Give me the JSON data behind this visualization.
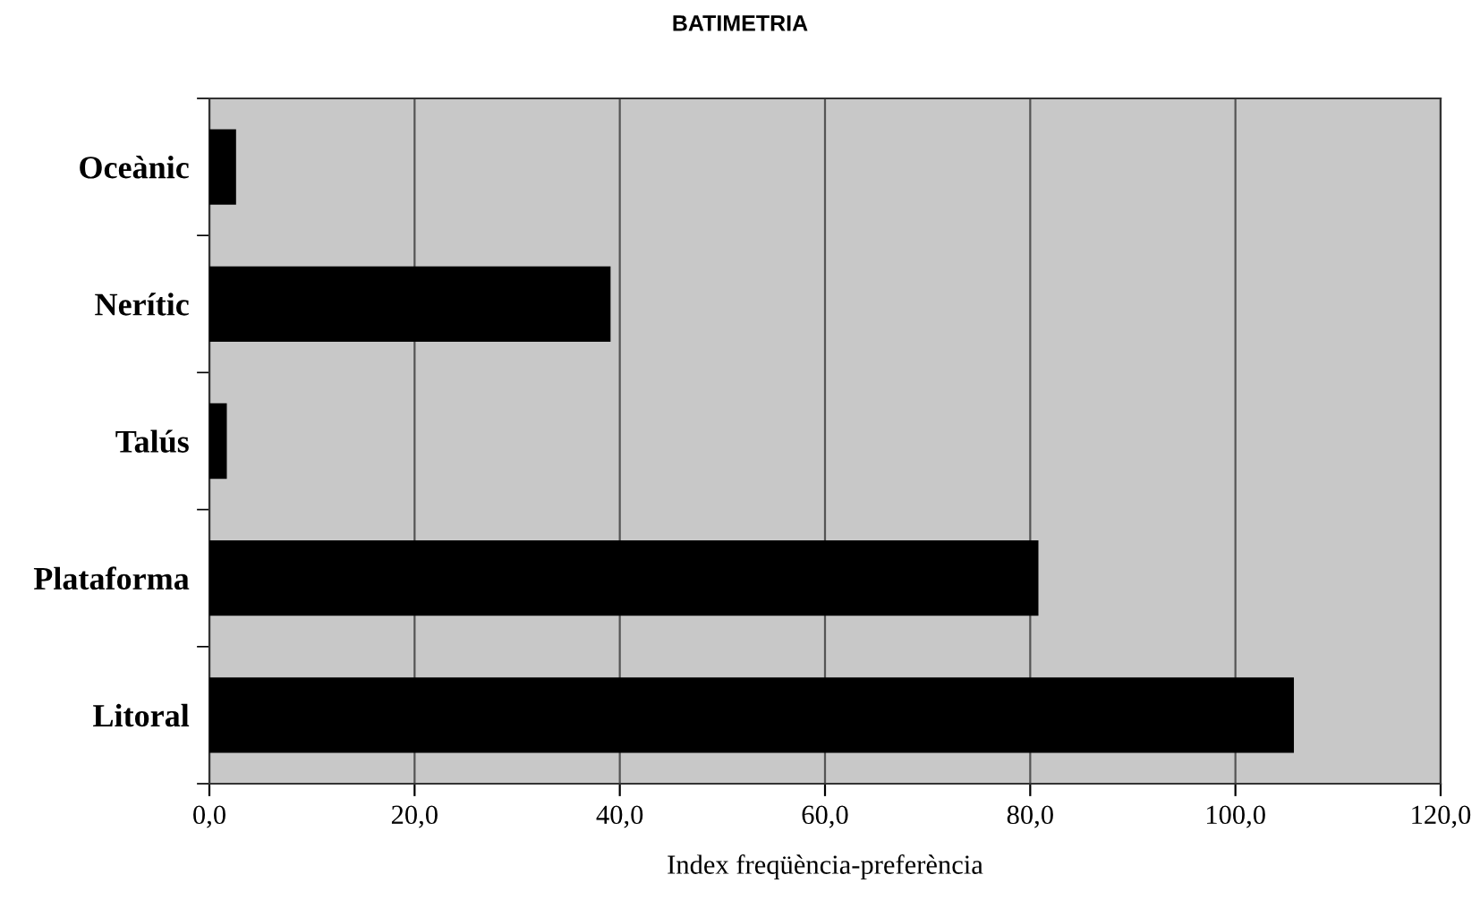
{
  "chart_data": {
    "type": "bar",
    "orientation": "horizontal",
    "title": "BATIMETRIA",
    "xlabel": "Index freqüència-preferència",
    "categories": [
      "Oceànic",
      "Nerític",
      "Talús",
      "Plataforma",
      "Litoral"
    ],
    "values": [
      2.6,
      39.1,
      1.7,
      80.8,
      105.7
    ],
    "color": "#000000",
    "xlim": [
      0,
      120
    ],
    "xticks": [
      {
        "value": 0,
        "label": "0,0"
      },
      {
        "value": 20,
        "label": "20,0"
      },
      {
        "value": 40,
        "label": "40,0"
      },
      {
        "value": 60,
        "label": "60,0"
      },
      {
        "value": 80,
        "label": "80,0"
      },
      {
        "value": 100,
        "label": "100,0"
      },
      {
        "value": 120,
        "label": "120,0"
      }
    ],
    "grid": "x",
    "legend": false
  }
}
